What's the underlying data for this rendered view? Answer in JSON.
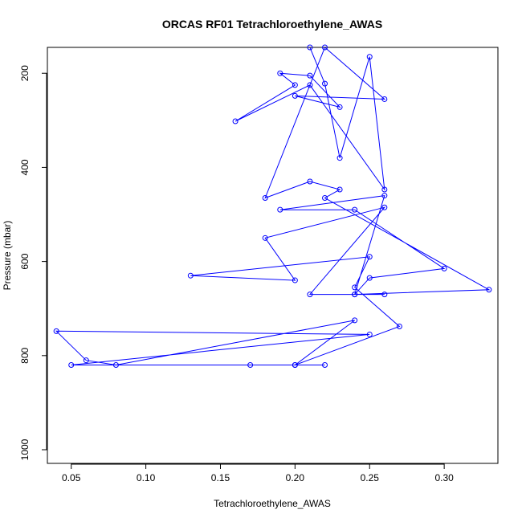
{
  "chart_data": {
    "type": "line",
    "title": "ORCAS RF01 Tetrachloroethylene_AWAS",
    "xlabel": "Tetrachloroethylene_AWAS",
    "ylabel": "Pressure (mbar)",
    "xlim": [
      0.034,
      0.336
    ],
    "ylim": [
      1029,
      145
    ],
    "y_reversed": true,
    "xticks": [
      0.05,
      0.1,
      0.15,
      0.2,
      0.25,
      0.3
    ],
    "xtick_labels": [
      "0.05",
      "0.10",
      "0.15",
      "0.20",
      "0.25",
      "0.30"
    ],
    "yticks": [
      200,
      400,
      600,
      800,
      1000
    ],
    "ytick_labels": [
      "200",
      "400",
      "600",
      "800",
      "1000"
    ],
    "grid": false,
    "legend": "none",
    "color": "#0000ff",
    "marker": "open-circle",
    "series": [
      {
        "x": [
          0.22,
          0.2,
          0.17,
          0.05,
          0.25,
          0.04,
          0.06,
          0.08,
          0.24,
          0.2,
          0.27,
          0.24,
          0.25,
          0.13,
          0.2,
          0.18,
          0.26,
          0.21,
          0.26,
          0.24,
          0.25,
          0.3,
          0.24,
          0.19,
          0.26,
          0.24,
          0.33,
          0.22,
          0.23,
          0.21,
          0.18,
          0.22,
          0.26,
          0.2,
          0.23,
          0.21,
          0.19,
          0.2,
          0.16,
          0.21,
          0.26,
          0.25,
          0.23,
          0.22,
          0.21
        ],
        "y": [
          820,
          820,
          820,
          820,
          755,
          748,
          810,
          820,
          725,
          820,
          738,
          655,
          590,
          630,
          640,
          550,
          485,
          670,
          670,
          670,
          635,
          615,
          490,
          490,
          460,
          670,
          660,
          465,
          447,
          430,
          465,
          145,
          255,
          248,
          272,
          205,
          200,
          225,
          302,
          225,
          447,
          165,
          380,
          222,
          145
        ]
      }
    ]
  }
}
